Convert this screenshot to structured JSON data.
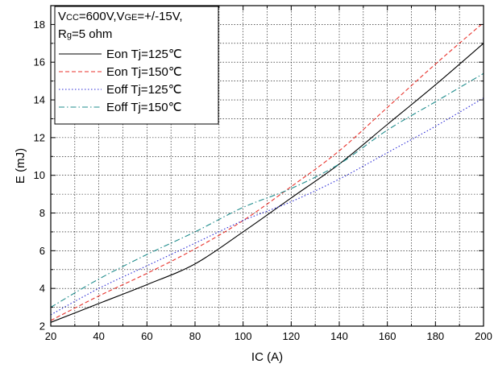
{
  "chart_data": {
    "type": "line",
    "title": "",
    "xlabel": "IC (A)",
    "ylabel": "E (mJ)",
    "xlim": [
      20,
      200
    ],
    "ylim": [
      2,
      19
    ],
    "x_ticks": [
      20,
      40,
      60,
      80,
      100,
      120,
      140,
      160,
      180,
      200
    ],
    "y_ticks": [
      2,
      4,
      6,
      8,
      10,
      12,
      14,
      16,
      18
    ],
    "grid": true,
    "legend_position": "top-left",
    "conditions": {
      "line1_a": "V",
      "line1_a_sub": "CC",
      "line1_b": "=600V,V",
      "line1_b_sub": "GE",
      "line1_c": "=+/-15V,",
      "line2_a": "R",
      "line2_a_sub": "g",
      "line2_b": "=5 ohm"
    },
    "x": [
      20,
      40,
      60,
      80,
      100,
      120,
      140,
      160,
      180,
      200
    ],
    "series": [
      {
        "name": "Eon Tj=125℃",
        "color": "#000000",
        "dash": "",
        "values": [
          2.2,
          3.2,
          4.2,
          5.3,
          7.0,
          8.8,
          10.6,
          12.7,
          14.8,
          17.0
        ]
      },
      {
        "name": "Eon Tj=150℃",
        "color": "#e8322b",
        "dash": "5,3",
        "values": [
          2.3,
          3.6,
          4.8,
          6.1,
          7.6,
          9.4,
          11.3,
          13.6,
          15.9,
          18.1
        ]
      },
      {
        "name": "Eoff Tj=125℃",
        "color": "#2b2bd6",
        "dash": "1.5,2.5",
        "values": [
          2.6,
          4.0,
          5.2,
          6.4,
          7.6,
          8.6,
          9.8,
          11.2,
          12.6,
          14.1
        ]
      },
      {
        "name": "Eoff Tj=150℃",
        "color": "#1f8c8c",
        "dash": "7,3,1.5,3",
        "values": [
          3.0,
          4.5,
          5.8,
          7.0,
          8.3,
          9.3,
          10.6,
          12.4,
          13.9,
          15.4
        ]
      }
    ]
  }
}
